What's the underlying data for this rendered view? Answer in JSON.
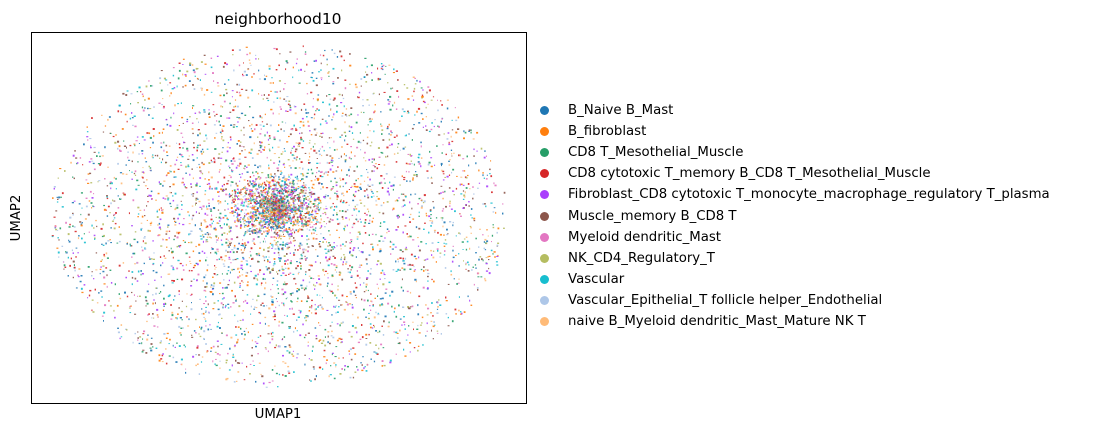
{
  "chart_data": {
    "type": "scatter",
    "title": "neighborhood10",
    "xlabel": "UMAP1",
    "ylabel": "UMAP2",
    "xticks": [],
    "yticks": [],
    "grid": false,
    "legend_position": "right",
    "categories": [
      {
        "name": "B_Naive B_Mast",
        "color": "#1f77b4"
      },
      {
        "name": "B_fibroblast",
        "color": "#ff7f0e"
      },
      {
        "name": "CD8 T_Mesothelial_Muscle",
        "color": "#279e68"
      },
      {
        "name": "CD8 cytotoxic T_memory B_CD8 T_Mesothelial_Muscle",
        "color": "#d62728"
      },
      {
        "name": "Fibroblast_CD8 cytotoxic T_monocyte_macrophage_regulatory T_plasma",
        "color": "#aa40fc"
      },
      {
        "name": "Muscle_memory B_CD8 T",
        "color": "#8c564b"
      },
      {
        "name": "Myeloid dendritic_Mast",
        "color": "#e377c2"
      },
      {
        "name": "NK_CD4_Regulatory_T",
        "color": "#b5bd61"
      },
      {
        "name": "Vascular",
        "color": "#17becf"
      },
      {
        "name": "Vascular_Epithelial_T follicle helper_Endothelial",
        "color": "#aec7e8"
      },
      {
        "name": "naive B_Myeloid dendritic_Mast_Mature NK T",
        "color": "#ffbb78"
      }
    ],
    "point_distribution": "dense elliptical cloud centered near (0, 0) with a dense core slightly above center; points of all categories intermixed; radius ~1.0 in normalized UMAP units"
  }
}
